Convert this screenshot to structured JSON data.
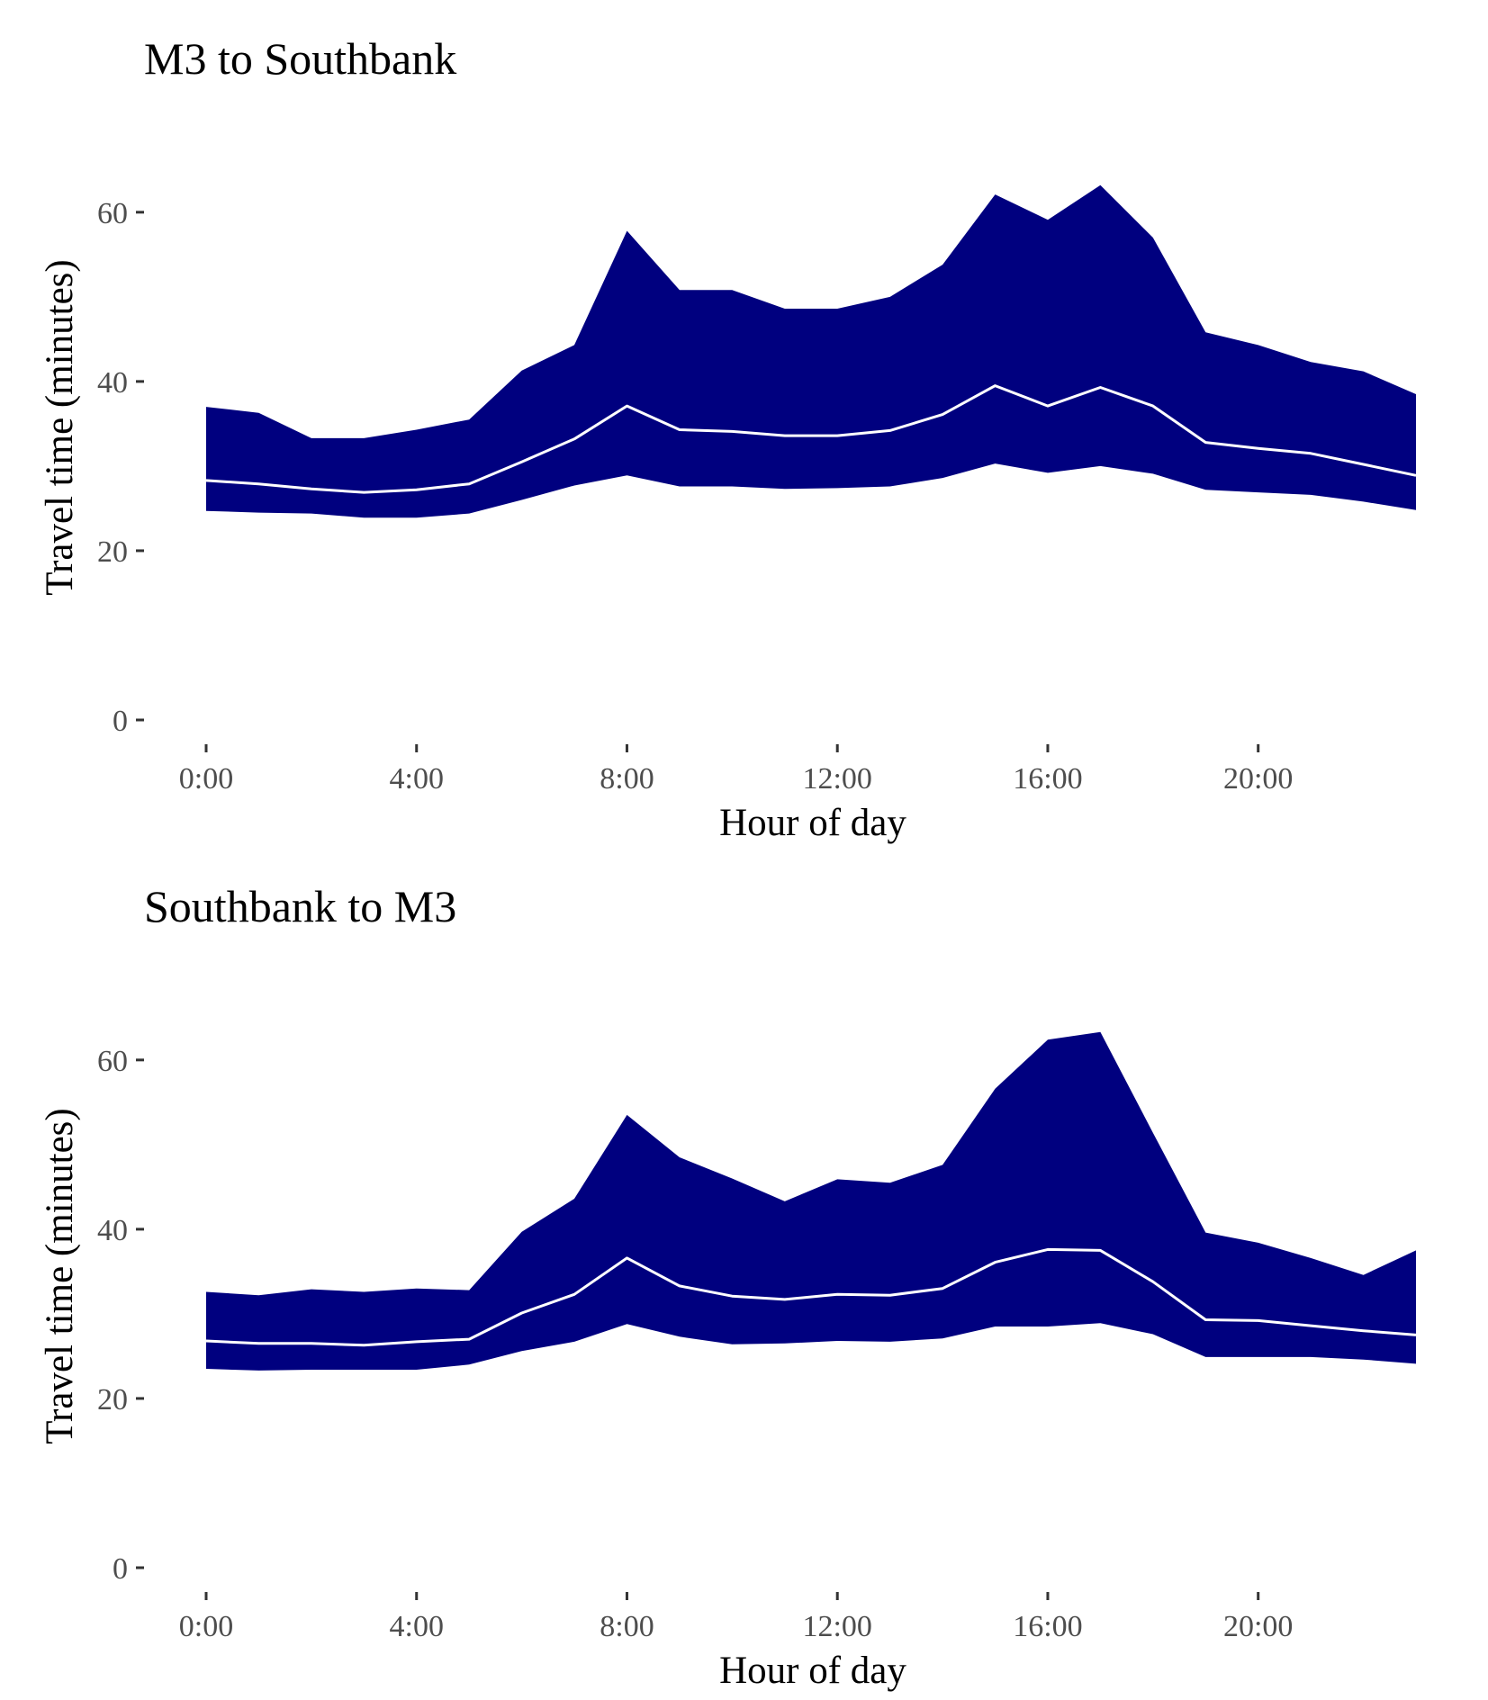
{
  "chart_data": [
    {
      "type": "area",
      "title": "M3 to Southbank",
      "xlabel": "Hour of day",
      "ylabel": "Travel time (minutes)",
      "x_ticks": [
        "0:00",
        "4:00",
        "8:00",
        "12:00",
        "16:00",
        "20:00"
      ],
      "y_ticks": [
        "0",
        "20",
        "40",
        "60"
      ],
      "ylim": [
        0,
        67
      ],
      "xlim": [
        0,
        23
      ],
      "grid": false,
      "colors": {
        "band": "#00007f",
        "median": "#ffffff"
      },
      "x": [
        0,
        1,
        2,
        3,
        4,
        5,
        6,
        7,
        8,
        9,
        10,
        11,
        12,
        13,
        14,
        15,
        16,
        17,
        18,
        19,
        20,
        21,
        22,
        23
      ],
      "series": [
        {
          "role": "upper",
          "values": [
            37,
            36.3,
            33.3,
            33.3,
            34.3,
            35.5,
            41.3,
            44.3,
            57.8,
            50.8,
            50.8,
            48.6,
            48.6,
            50,
            53.8,
            62.1,
            59.1,
            63.2,
            57,
            45.8,
            44.3,
            42.3,
            41.2,
            38.5
          ]
        },
        {
          "role": "median",
          "values": [
            28.3,
            27.9,
            27.3,
            26.9,
            27.2,
            27.9,
            30.5,
            33.2,
            37.1,
            34.3,
            34.1,
            33.6,
            33.6,
            34.2,
            36.1,
            39.5,
            37.1,
            39.3,
            37.1,
            32.8,
            32.1,
            31.5,
            30.2,
            28.9
          ]
        },
        {
          "role": "lower",
          "values": [
            24.7,
            24.5,
            24.4,
            23.9,
            23.9,
            24.4,
            26,
            27.7,
            28.9,
            27.6,
            27.6,
            27.3,
            27.4,
            27.6,
            28.6,
            30.3,
            29.2,
            30,
            29.1,
            27.2,
            26.9,
            26.6,
            25.8,
            24.8
          ]
        }
      ]
    },
    {
      "type": "area",
      "title": "Southbank to M3",
      "xlabel": "Hour of day",
      "ylabel": "Travel time (minutes)",
      "x_ticks": [
        "0:00",
        "4:00",
        "8:00",
        "12:00",
        "16:00",
        "20:00"
      ],
      "y_ticks": [
        "0",
        "20",
        "40",
        "60"
      ],
      "ylim": [
        0,
        67
      ],
      "xlim": [
        0,
        23
      ],
      "grid": false,
      "colors": {
        "band": "#00007f",
        "median": "#ffffff"
      },
      "x": [
        0,
        1,
        2,
        3,
        4,
        5,
        6,
        7,
        8,
        9,
        10,
        11,
        12,
        13,
        14,
        15,
        16,
        17,
        18,
        19,
        20,
        21,
        22,
        23
      ],
      "series": [
        {
          "role": "upper",
          "values": [
            32.6,
            32.2,
            32.9,
            32.6,
            33,
            32.8,
            39.7,
            43.6,
            53.5,
            48.5,
            46,
            43.3,
            45.9,
            45.5,
            47.6,
            56.6,
            62.4,
            63.3,
            51.4,
            39.6,
            38.4,
            36.6,
            34.6,
            37.5
          ]
        },
        {
          "role": "median",
          "values": [
            26.8,
            26.5,
            26.5,
            26.3,
            26.7,
            27,
            30.1,
            32.3,
            36.6,
            33.3,
            32.1,
            31.7,
            32.3,
            32.2,
            33,
            36.1,
            37.6,
            37.5,
            33.8,
            29.3,
            29.2,
            28.6,
            28,
            27.5
          ]
        },
        {
          "role": "lower",
          "values": [
            23.5,
            23.3,
            23.4,
            23.4,
            23.4,
            24,
            25.6,
            26.7,
            28.8,
            27.3,
            26.4,
            26.5,
            26.8,
            26.7,
            27.1,
            28.5,
            28.5,
            28.9,
            27.6,
            24.9,
            24.9,
            24.9,
            24.6,
            24.1
          ]
        }
      ]
    }
  ]
}
